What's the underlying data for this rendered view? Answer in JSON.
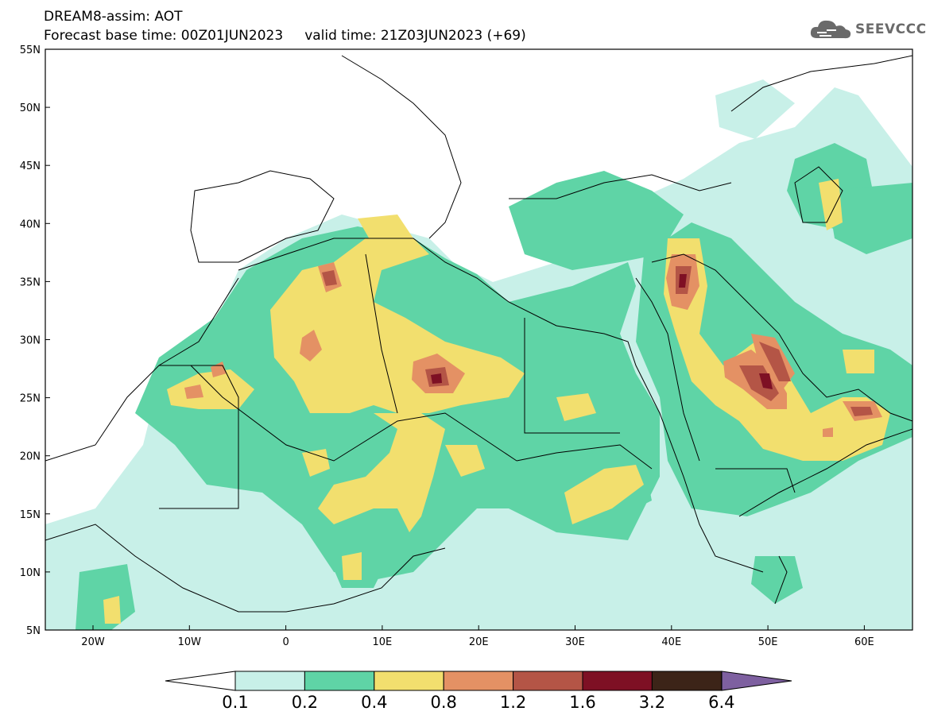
{
  "header": {
    "title": "DREAM8-assim: AOT",
    "base_time_label": "Forecast base time: 00Z01JUN2023",
    "valid_time_label": "valid time: 21Z03JUN2023 (+69)"
  },
  "logo": {
    "text": "SEEVCCC"
  },
  "axes": {
    "lat_labels": [
      "55N",
      "50N",
      "45N",
      "40N",
      "35N",
      "30N",
      "25N",
      "20N",
      "15N",
      "10N",
      "5N"
    ],
    "lon_labels": [
      "20W",
      "10W",
      "0",
      "10E",
      "20E",
      "30E",
      "40E",
      "50E",
      "60E"
    ]
  },
  "colorbar": {
    "labels": [
      "0.1",
      "0.2",
      "0.4",
      "0.8",
      "1.2",
      "1.6",
      "3.2",
      "6.4"
    ],
    "colors": [
      "#c8f0e8",
      "#5fd4a6",
      "#f2df6e",
      "#e49164",
      "#b45546",
      "#7e1024",
      "#3c2418",
      "#7e60a0"
    ]
  },
  "colors": {
    "lvl1": "#c8f0e8",
    "lvl2": "#5fd4a6",
    "lvl3": "#f2df6e",
    "lvl4": "#e49164",
    "lvl5": "#b45546",
    "lvl6": "#7e1024"
  }
}
